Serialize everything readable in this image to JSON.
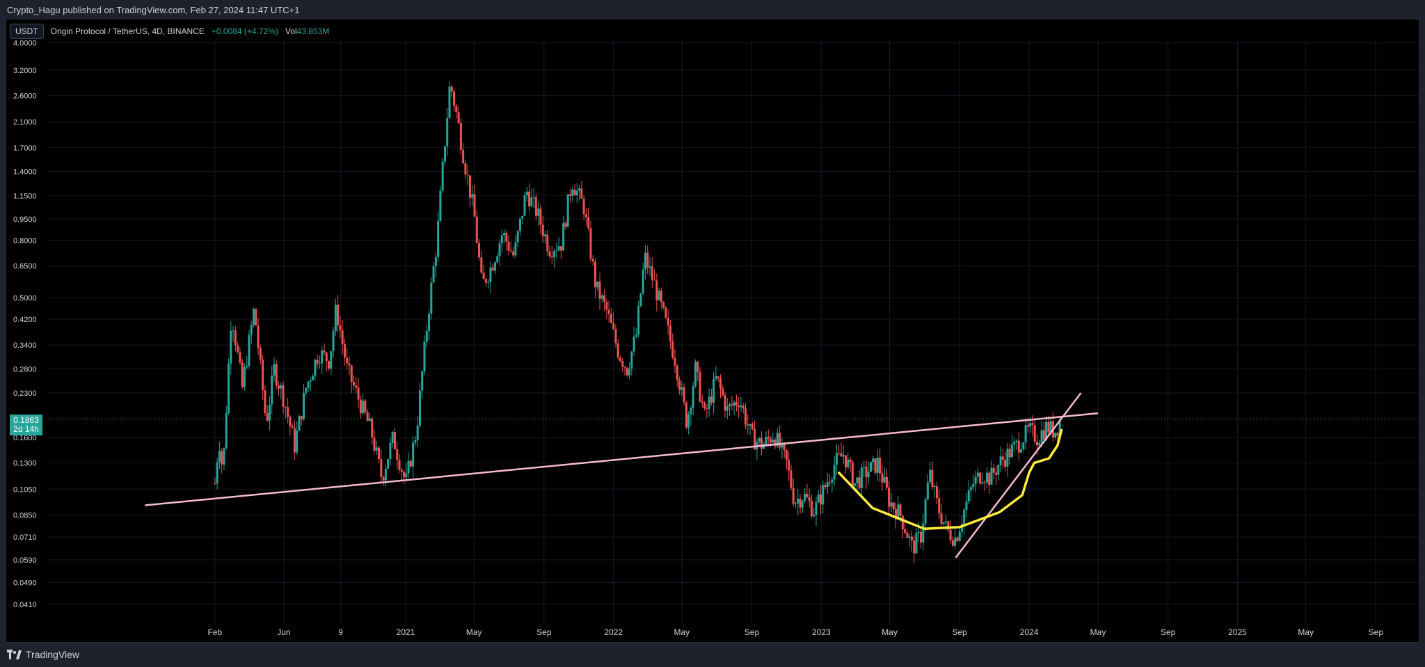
{
  "header": {
    "publish_line": "Crypto_Hagu published on TradingView.com, Feb 27, 2024 11:47 UTC+1"
  },
  "legend": {
    "quote_button": "USDT",
    "symbol": "Origin Protocol / TetherUS, 4D, BINANCE",
    "change": "+0.0084 (+4.72%)",
    "vol_label": "Vol",
    "vol_value": "43.853M"
  },
  "last_price": {
    "value": "0.1863",
    "countdown": "2d 14h"
  },
  "footer": {
    "brand": "TradingView"
  },
  "colors": {
    "up": "#26a69a",
    "down": "#ef5350",
    "trendline": "#f8bbd0",
    "cup": "#ffeb3b",
    "background": "#000000"
  },
  "chart_data": {
    "type": "candlestick",
    "scale": "log",
    "y_tick_labels": [
      "4.0000",
      "3.2000",
      "2.6000",
      "2.1000",
      "1.7000",
      "1.4000",
      "1.1500",
      "0.9500",
      "0.8000",
      "0.6500",
      "0.5000",
      "0.4200",
      "0.3400",
      "0.2800",
      "0.2300",
      "0.1600",
      "0.1300",
      "0.1050",
      "0.0850",
      "0.0710",
      "0.0590",
      "0.0490",
      "0.0410"
    ],
    "x_tick_labels": [
      {
        "label": "Feb",
        "date": "2020-02-01"
      },
      {
        "label": "Jun",
        "date": "2020-06-01"
      },
      {
        "label": "9",
        "date": "2020-09-09"
      },
      {
        "label": "2021",
        "date": "2021-01-01"
      },
      {
        "label": "May",
        "date": "2021-05-01"
      },
      {
        "label": "Sep",
        "date": "2021-09-01"
      },
      {
        "label": "2022",
        "date": "2022-01-01"
      },
      {
        "label": "May",
        "date": "2022-05-01"
      },
      {
        "label": "Sep",
        "date": "2022-09-01"
      },
      {
        "label": "2023",
        "date": "2023-01-01"
      },
      {
        "label": "May",
        "date": "2023-05-01"
      },
      {
        "label": "Sep",
        "date": "2023-09-01"
      },
      {
        "label": "2024",
        "date": "2024-01-01"
      },
      {
        "label": "May",
        "date": "2024-05-01"
      },
      {
        "label": "Sep",
        "date": "2024-09-01"
      },
      {
        "label": "2025",
        "date": "2025-01-01"
      },
      {
        "label": "May",
        "date": "2025-05-01"
      },
      {
        "label": "Sep",
        "date": "2025-09-01"
      }
    ],
    "price_path": [
      [
        "2020-02-01",
        0.11
      ],
      [
        "2020-02-08",
        0.16
      ],
      [
        "2020-02-15",
        0.12
      ],
      [
        "2020-03-01",
        0.45
      ],
      [
        "2020-03-20",
        0.24
      ],
      [
        "2020-04-10",
        0.46
      ],
      [
        "2020-05-01",
        0.18
      ],
      [
        "2020-05-15",
        0.28
      ],
      [
        "2020-06-01",
        0.22
      ],
      [
        "2020-06-20",
        0.15
      ],
      [
        "2020-07-10",
        0.24
      ],
      [
        "2020-08-01",
        0.32
      ],
      [
        "2020-08-20",
        0.3
      ],
      [
        "2020-09-01",
        0.46
      ],
      [
        "2020-09-20",
        0.28
      ],
      [
        "2020-10-10",
        0.22
      ],
      [
        "2020-11-01",
        0.17
      ],
      [
        "2020-11-20",
        0.115
      ],
      [
        "2020-12-10",
        0.16
      ],
      [
        "2021-01-01",
        0.11
      ],
      [
        "2021-01-20",
        0.17
      ],
      [
        "2021-02-10",
        0.45
      ],
      [
        "2021-02-25",
        0.8
      ],
      [
        "2021-03-10",
        1.7
      ],
      [
        "2021-03-20",
        2.9
      ],
      [
        "2021-04-01",
        2.2
      ],
      [
        "2021-04-15",
        1.5
      ],
      [
        "2021-05-01",
        1.0
      ],
      [
        "2021-05-15",
        0.55
      ],
      [
        "2021-06-01",
        0.65
      ],
      [
        "2021-06-20",
        0.85
      ],
      [
        "2021-07-10",
        0.7
      ],
      [
        "2021-08-01",
        1.2
      ],
      [
        "2021-08-20",
        1.0
      ],
      [
        "2021-09-10",
        0.75
      ],
      [
        "2021-10-01",
        0.78
      ],
      [
        "2021-10-20",
        1.3
      ],
      [
        "2021-11-10",
        1.05
      ],
      [
        "2021-12-01",
        0.55
      ],
      [
        "2021-12-20",
        0.45
      ],
      [
        "2022-01-10",
        0.32
      ],
      [
        "2022-01-25",
        0.28
      ],
      [
        "2022-02-10",
        0.37
      ],
      [
        "2022-02-25",
        0.7
      ],
      [
        "2022-03-15",
        0.55
      ],
      [
        "2022-04-01",
        0.42
      ],
      [
        "2022-04-20",
        0.3
      ],
      [
        "2022-05-10",
        0.18
      ],
      [
        "2022-05-25",
        0.28
      ],
      [
        "2022-06-10",
        0.19
      ],
      [
        "2022-07-01",
        0.26
      ],
      [
        "2022-07-20",
        0.2
      ],
      [
        "2022-08-10",
        0.22
      ],
      [
        "2022-09-01",
        0.16
      ],
      [
        "2022-09-20",
        0.15
      ],
      [
        "2022-10-10",
        0.165
      ],
      [
        "2022-11-01",
        0.13
      ],
      [
        "2022-11-15",
        0.095
      ],
      [
        "2022-12-01",
        0.1
      ],
      [
        "2022-12-20",
        0.088
      ],
      [
        "2023-01-10",
        0.11
      ],
      [
        "2023-01-25",
        0.13
      ],
      [
        "2023-02-10",
        0.14
      ],
      [
        "2023-03-01",
        0.11
      ],
      [
        "2023-03-20",
        0.12
      ],
      [
        "2023-04-10",
        0.13
      ],
      [
        "2023-05-01",
        0.095
      ],
      [
        "2023-05-20",
        0.085
      ],
      [
        "2023-06-10",
        0.065
      ],
      [
        "2023-06-25",
        0.072
      ],
      [
        "2023-07-10",
        0.12
      ],
      [
        "2023-07-25",
        0.09
      ],
      [
        "2023-08-10",
        0.075
      ],
      [
        "2023-08-25",
        0.07
      ],
      [
        "2023-09-10",
        0.09
      ],
      [
        "2023-09-25",
        0.11
      ],
      [
        "2023-10-10",
        0.12
      ],
      [
        "2023-10-25",
        0.115
      ],
      [
        "2023-11-10",
        0.13
      ],
      [
        "2023-11-25",
        0.14
      ],
      [
        "2023-12-10",
        0.15
      ],
      [
        "2024-01-01",
        0.17
      ],
      [
        "2024-01-15",
        0.16
      ],
      [
        "2024-02-01",
        0.175
      ],
      [
        "2024-02-15",
        0.168
      ],
      [
        "2024-02-27",
        0.1863
      ]
    ],
    "annotations": {
      "support_trendline": [
        [
          "2019-10-01",
          0.092
        ],
        [
          "2024-05-01",
          0.195
        ]
      ],
      "rising_trendline": [
        [
          "2023-08-25",
          0.06
        ],
        [
          "2024-04-01",
          0.23
        ]
      ]
    }
  }
}
